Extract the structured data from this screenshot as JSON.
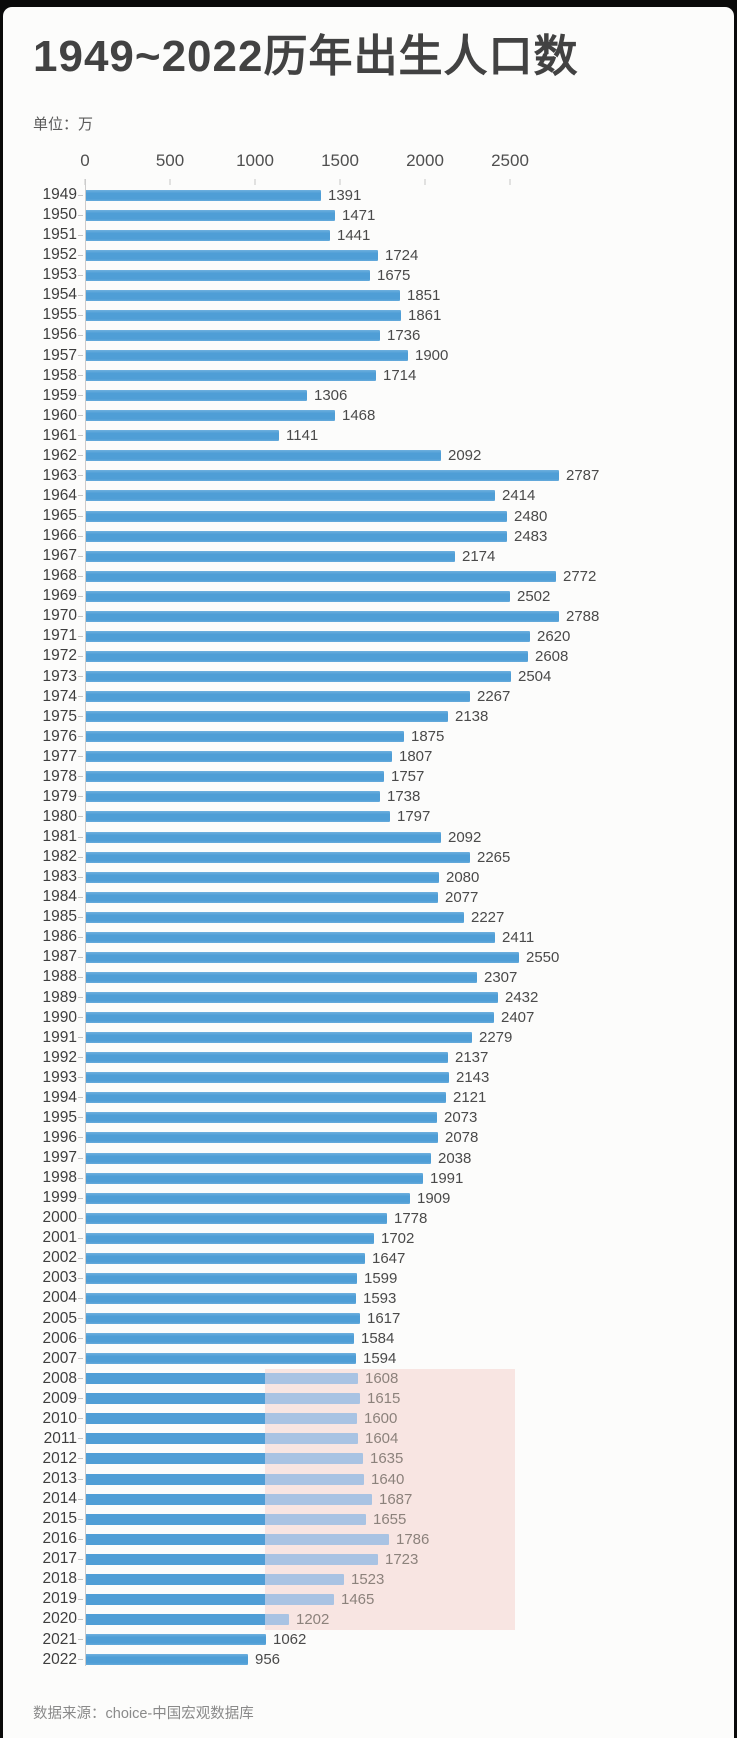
{
  "page": {
    "title": "1949~2022历年出生人口数",
    "unit_label": "单位：万",
    "source_label": "数据来源：choice-中国宏观数据库"
  },
  "chart_data": {
    "type": "bar",
    "orientation": "horizontal",
    "title": "1949~2022历年出生人口数",
    "unit": "万",
    "x_axis_ticks": [
      0,
      500,
      1000,
      1500,
      2000,
      2500
    ],
    "xlim": [
      0,
      2900
    ],
    "grid": "off",
    "legend": "none",
    "categories": [
      "1949",
      "1950",
      "1951",
      "1952",
      "1953",
      "1954",
      "1955",
      "1956",
      "1957",
      "1958",
      "1959",
      "1960",
      "1961",
      "1962",
      "1963",
      "1964",
      "1965",
      "1966",
      "1967",
      "1968",
      "1969",
      "1970",
      "1971",
      "1972",
      "1973",
      "1974",
      "1975",
      "1976",
      "1977",
      "1978",
      "1979",
      "1980",
      "1981",
      "1982",
      "1983",
      "1984",
      "1985",
      "1986",
      "1987",
      "1988",
      "1989",
      "1990",
      "1991",
      "1992",
      "1993",
      "1994",
      "1995",
      "1996",
      "1997",
      "1998",
      "1999",
      "2000",
      "2001",
      "2002",
      "2003",
      "2004",
      "2005",
      "2006",
      "2007",
      "2008",
      "2009",
      "2010",
      "2011",
      "2012",
      "2013",
      "2014",
      "2015",
      "2016",
      "2017",
      "2018",
      "2019",
      "2020",
      "2021",
      "2022"
    ],
    "values": [
      1391,
      1471,
      1441,
      1724,
      1675,
      1851,
      1861,
      1736,
      1900,
      1714,
      1306,
      1468,
      1141,
      2092,
      2787,
      2414,
      2480,
      2483,
      2174,
      2772,
      2502,
      2788,
      2620,
      2608,
      2504,
      2267,
      2138,
      1875,
      1807,
      1757,
      1738,
      1797,
      2092,
      2265,
      2080,
      2077,
      2227,
      2411,
      2550,
      2307,
      2432,
      2407,
      2279,
      2137,
      2143,
      2121,
      2073,
      2078,
      2038,
      1991,
      1909,
      1778,
      1702,
      1647,
      1599,
      1593,
      1617,
      1584,
      1594,
      1608,
      1615,
      1600,
      1604,
      1635,
      1640,
      1687,
      1655,
      1786,
      1723,
      1523,
      1465,
      1202,
      1062,
      956
    ],
    "highlight_range": {
      "start_year": "2008",
      "end_year": "2020"
    },
    "colors": {
      "bar": "#4f9ed6",
      "bar_faded": "#a9c3e3",
      "highlight_bg": "#f8e5e2",
      "value_label": "#4a4a4a",
      "value_label_faded": "#8c827c"
    }
  }
}
